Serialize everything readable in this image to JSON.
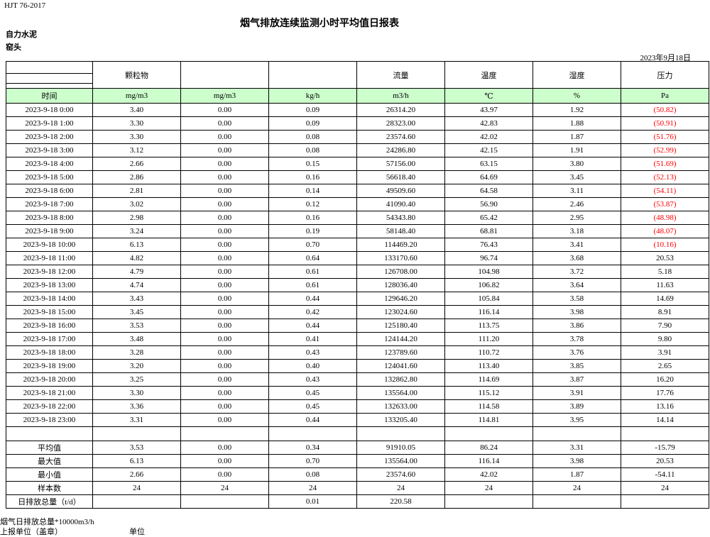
{
  "header": {
    "code": "HJT  76-2017",
    "title": "烟气排放连续监测小时平均值日报表",
    "company": "自力水泥",
    "location": "窑头",
    "date": "2023年9月18日"
  },
  "table": {
    "header": [
      null,
      "颗粒物",
      null,
      null,
      "流量",
      "温度",
      "湿度",
      "压力"
    ],
    "units": [
      "时间",
      "mg/m3",
      "mg/m3",
      "kg/h",
      "m3/h",
      "℃",
      "%",
      "Pa"
    ],
    "rows": [
      [
        "2023-9-18 0:00",
        "3.40",
        "0.00",
        "0.09",
        "26314.20",
        "43.97",
        "1.92",
        "(50.82)"
      ],
      [
        "2023-9-18 1:00",
        "3.30",
        "0.00",
        "0.09",
        "28323.00",
        "42.83",
        "1.88",
        "(50.91)"
      ],
      [
        "2023-9-18 2:00",
        "3.30",
        "0.00",
        "0.08",
        "23574.60",
        "42.02",
        "1.87",
        "(51.76)"
      ],
      [
        "2023-9-18 3:00",
        "3.12",
        "0.00",
        "0.08",
        "24286.80",
        "42.15",
        "1.91",
        "(52.99)"
      ],
      [
        "2023-9-18 4:00",
        "2.66",
        "0.00",
        "0.15",
        "57156.00",
        "63.15",
        "3.80",
        "(51.69)"
      ],
      [
        "2023-9-18 5:00",
        "2.86",
        "0.00",
        "0.16",
        "56618.40",
        "64.69",
        "3.45",
        "(52.13)"
      ],
      [
        "2023-9-18 6:00",
        "2.81",
        "0.00",
        "0.14",
        "49509.60",
        "64.58",
        "3.11",
        "(54.11)"
      ],
      [
        "2023-9-18 7:00",
        "3.02",
        "0.00",
        "0.12",
        "41090.40",
        "56.90",
        "2.46",
        "(53.87)"
      ],
      [
        "2023-9-18 8:00",
        "2.98",
        "0.00",
        "0.16",
        "54343.80",
        "65.42",
        "2.95",
        "(48.98)"
      ],
      [
        "2023-9-18 9:00",
        "3.24",
        "0.00",
        "0.19",
        "58148.40",
        "68.81",
        "3.18",
        "(48.07)"
      ],
      [
        "2023-9-18 10:00",
        "6.13",
        "0.00",
        "0.70",
        "114469.20",
        "76.43",
        "3.41",
        "(10.16)"
      ],
      [
        "2023-9-18 11:00",
        "4.82",
        "0.00",
        "0.64",
        "133170.60",
        "96.74",
        "3.68",
        "20.53"
      ],
      [
        "2023-9-18 12:00",
        "4.79",
        "0.00",
        "0.61",
        "126708.00",
        "104.98",
        "3.72",
        "5.18"
      ],
      [
        "2023-9-18 13:00",
        "4.74",
        "0.00",
        "0.61",
        "128036.40",
        "106.82",
        "3.64",
        "11.63"
      ],
      [
        "2023-9-18 14:00",
        "3.43",
        "0.00",
        "0.44",
        "129646.20",
        "105.84",
        "3.58",
        "14.69"
      ],
      [
        "2023-9-18 15:00",
        "3.45",
        "0.00",
        "0.42",
        "123024.60",
        "116.14",
        "3.98",
        "8.91"
      ],
      [
        "2023-9-18 16:00",
        "3.53",
        "0.00",
        "0.44",
        "125180.40",
        "113.75",
        "3.86",
        "7.90"
      ],
      [
        "2023-9-18 17:00",
        "3.48",
        "0.00",
        "0.41",
        "124144.20",
        "111.20",
        "3.78",
        "9.80"
      ],
      [
        "2023-9-18 18:00",
        "3.28",
        "0.00",
        "0.43",
        "123789.60",
        "110.72",
        "3.76",
        "3.91"
      ],
      [
        "2023-9-18 19:00",
        "3.20",
        "0.00",
        "0.40",
        "124041.60",
        "113.40",
        "3.85",
        "2.65"
      ],
      [
        "2023-9-18 20:00",
        "3.25",
        "0.00",
        "0.43",
        "132862.80",
        "114.69",
        "3.87",
        "16.20"
      ],
      [
        "2023-9-18 21:00",
        "3.30",
        "0.00",
        "0.45",
        "135564.00",
        "115.12",
        "3.91",
        "17.76"
      ],
      [
        "2023-9-18 22:00",
        "3.36",
        "0.00",
        "0.45",
        "132633.00",
        "114.58",
        "3.89",
        "13.16"
      ],
      [
        "2023-9-18 23:00",
        "3.31",
        "0.00",
        "0.44",
        "133205.40",
        "114.81",
        "3.95",
        "14.14"
      ]
    ],
    "summary": [
      [
        "平均值",
        "3.53",
        "0.00",
        "0.34",
        "91910.05",
        "86.24",
        "3.31",
        "-15.79"
      ],
      [
        "最大值",
        "6.13",
        "0.00",
        "0.70",
        "135564.00",
        "116.14",
        "3.98",
        "20.53"
      ],
      [
        "最小值",
        "2.66",
        "0.00",
        "0.08",
        "23574.60",
        "42.02",
        "1.87",
        "-54.11"
      ],
      [
        "样本数",
        "24",
        "24",
        "24",
        "24",
        "24",
        "24",
        "24"
      ]
    ],
    "total": [
      "日排放总量（t/d）",
      null,
      null,
      "0.01",
      "220.58",
      null,
      null,
      null
    ]
  },
  "footer": {
    "note": "烟气日排放总量*10000m3/h",
    "reporter": "上报单位（盖章）",
    "unit": "单位"
  }
}
